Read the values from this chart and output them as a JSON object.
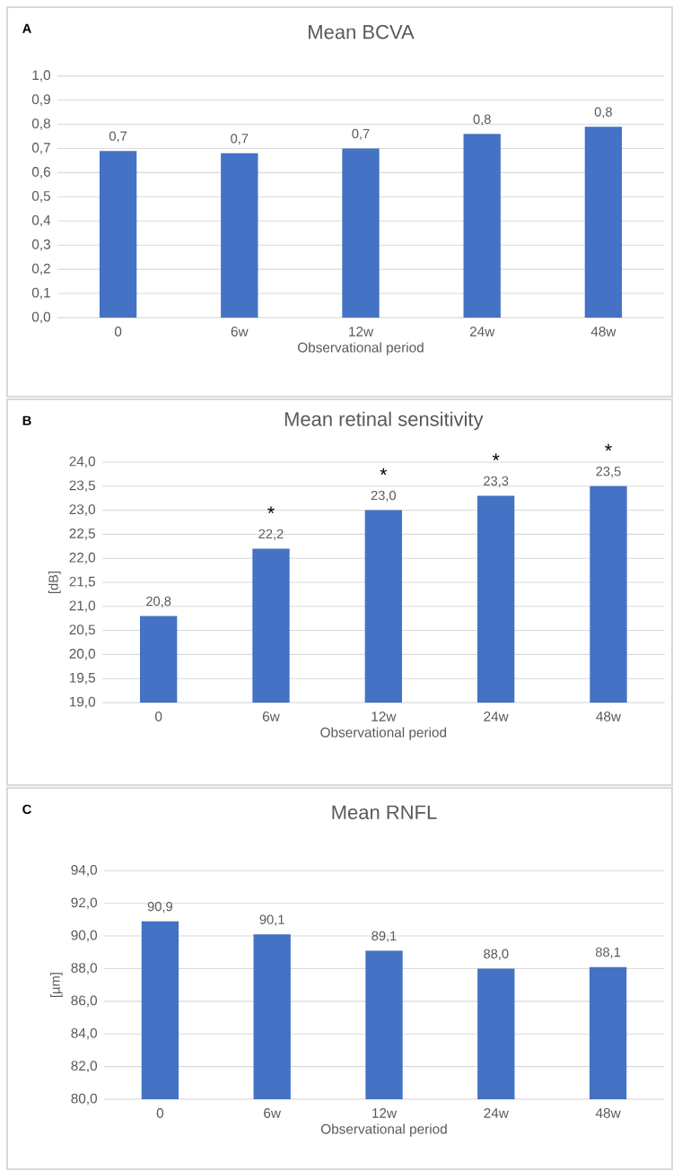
{
  "chart_data": [
    {
      "type": "bar",
      "title": "Mean BCVA",
      "xlabel": "Observational period",
      "categories": [
        "0",
        "6w",
        "12w",
        "24w",
        "48w"
      ],
      "values": [
        0.69,
        0.68,
        0.7,
        0.76,
        0.79
      ],
      "value_labels": [
        "0,7",
        "0,7",
        "0,7",
        "0,8",
        "0,8"
      ],
      "color": "#4472c4",
      "ylim": [
        0,
        1
      ],
      "yticks": [
        {
          "value": 0,
          "label": "0,0"
        },
        {
          "value": 0.1,
          "label": "0,1"
        },
        {
          "value": 0.2,
          "label": "0,2"
        },
        {
          "value": 0.3,
          "label": "0,3"
        },
        {
          "value": 0.4,
          "label": "0,4"
        },
        {
          "value": 0.5,
          "label": "0,5"
        },
        {
          "value": 0.6,
          "label": "0,6"
        },
        {
          "value": 0.7,
          "label": "0,7"
        },
        {
          "value": 0.8,
          "label": "0,8"
        },
        {
          "value": 0.9,
          "label": "0,9"
        },
        {
          "value": 1,
          "label": "1,0"
        }
      ],
      "grid": "y",
      "annotations": [
        "A"
      ]
    },
    {
      "type": "bar",
      "title": "Mean retinal sensitivity",
      "xlabel": "Observational period",
      "ylabel": "[dB]",
      "categories": [
        "0",
        "6w",
        "12w",
        "24w",
        "48w"
      ],
      "values": [
        20.8,
        22.2,
        23.0,
        23.3,
        23.5
      ],
      "value_labels": [
        "20,8",
        "22,2",
        "23,0",
        "23,3",
        "23,5"
      ],
      "color": "#4472c4",
      "ylim": [
        19,
        24
      ],
      "yticks": [
        {
          "value": 19,
          "label": "19,0"
        },
        {
          "value": 19.5,
          "label": "19,5"
        },
        {
          "value": 20,
          "label": "20,0"
        },
        {
          "value": 20.5,
          "label": "20,5"
        },
        {
          "value": 21,
          "label": "21,0"
        },
        {
          "value": 21.5,
          "label": "21,5"
        },
        {
          "value": 22,
          "label": "22,0"
        },
        {
          "value": 22.5,
          "label": "22,5"
        },
        {
          "value": 23,
          "label": "23,0"
        },
        {
          "value": 23.5,
          "label": "23,5"
        },
        {
          "value": 24,
          "label": "24,0"
        }
      ],
      "grid": "y",
      "annotations": [
        "B",
        {
          "text": "*",
          "x": "6w",
          "y": 22.2
        },
        {
          "text": "*",
          "x": "12w",
          "y": 23.0
        },
        {
          "text": "*",
          "x": "24w",
          "y": 23.3
        },
        {
          "text": "*",
          "x": "48w",
          "y": 23.5
        }
      ]
    },
    {
      "type": "bar",
      "title": "Mean RNFL",
      "xlabel": "Observational period",
      "ylabel": "[µm]",
      "categories": [
        "0",
        "6w",
        "12w",
        "24w",
        "48w"
      ],
      "values": [
        90.9,
        90.1,
        89.1,
        88.0,
        88.1
      ],
      "value_labels": [
        "90,9",
        "90,1",
        "89,1",
        "88,0",
        "88,1"
      ],
      "color": "#4472c4",
      "ylim": [
        80,
        94
      ],
      "yticks": [
        {
          "value": 80,
          "label": "80,0"
        },
        {
          "value": 82,
          "label": "82,0"
        },
        {
          "value": 84,
          "label": "84,0"
        },
        {
          "value": 86,
          "label": "86,0"
        },
        {
          "value": 88,
          "label": "88,0"
        },
        {
          "value": 90,
          "label": "90,0"
        },
        {
          "value": 92,
          "label": "92,0"
        },
        {
          "value": 94,
          "label": "94,0"
        }
      ],
      "grid": "y",
      "annotations": [
        "C"
      ]
    }
  ]
}
